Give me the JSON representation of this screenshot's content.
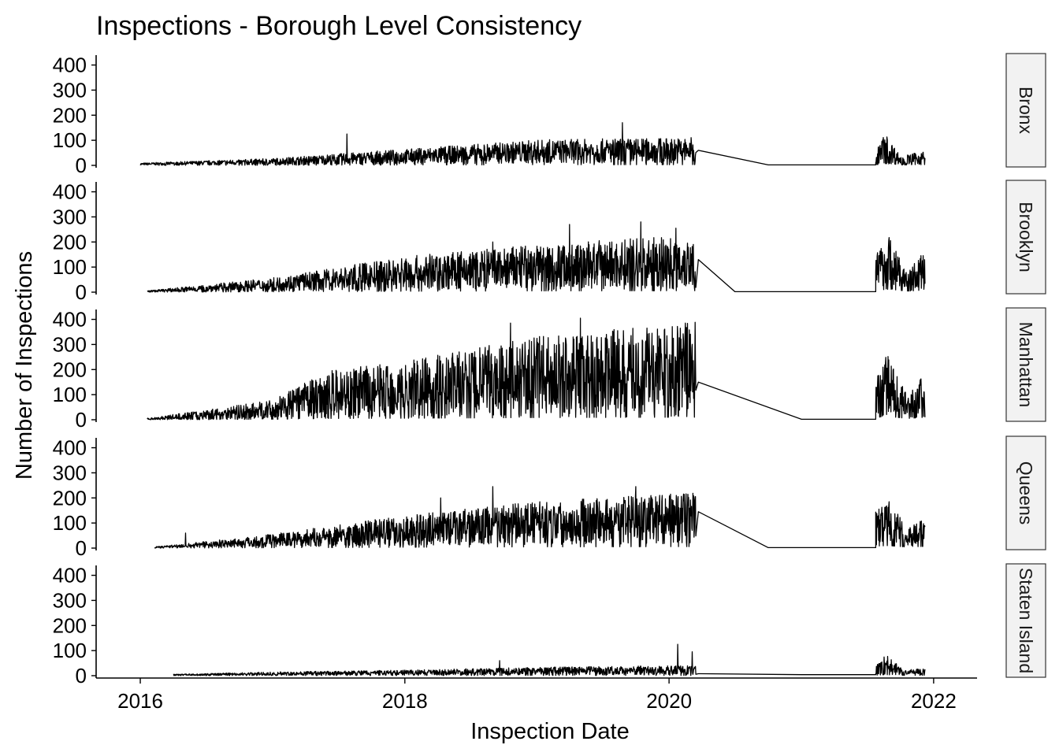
{
  "chart_data": {
    "type": "line",
    "title": "Inspections - Borough Level Consistency",
    "xlabel": "Inspection Date",
    "ylabel": "Number of Inspections",
    "x_ticks": [
      "2016",
      "2018",
      "2020",
      "2022"
    ],
    "y_ticks": [
      "0",
      "100",
      "200",
      "300",
      "400"
    ],
    "xlim": [
      "2015-09-01",
      "2022-05-01"
    ],
    "ylim": [
      0,
      430
    ],
    "grid": false,
    "legend": "none",
    "facet_layout": "rows",
    "colors": {
      "line": "#000000",
      "strip_fill": "#f2f2f2",
      "strip_border": "#333333"
    },
    "series": [
      {
        "name": "Bronx",
        "start": "2016-01-01",
        "end": "2020-03-15",
        "gap_low_date": "2020-10-01",
        "resume": "2021-07-25",
        "final": "2021-12-08",
        "before_peak": "2020-03-22",
        "before_peak_value": 60,
        "gap_low_value": 2,
        "waypoints": [
          [
            "2016-01-01",
            5
          ],
          [
            "2017-01-01",
            15
          ],
          [
            "2018-01-01",
            35
          ],
          [
            "2019-01-01",
            55
          ],
          [
            "2020-03-10",
            60
          ]
        ],
        "amplitude": 0.9,
        "spikes": [
          [
            "2017-07-25",
            125
          ],
          [
            "2019-08-25",
            170
          ],
          [
            "2018-10-10",
            80
          ]
        ],
        "post": [
          [
            "2021-07-25",
            30
          ],
          [
            "2021-08-20",
            70
          ],
          [
            "2021-10-01",
            20
          ],
          [
            "2021-12-08",
            30
          ]
        ]
      },
      {
        "name": "Brooklyn",
        "start": "2016-01-20",
        "end": "2020-03-15",
        "gap_low_date": "2020-07-01",
        "resume": "2021-07-25",
        "final": "2021-12-08",
        "before_peak": "2020-03-22",
        "before_peak_value": 130,
        "gap_low_value": 2,
        "waypoints": [
          [
            "2016-01-20",
            3
          ],
          [
            "2017-01-01",
            30
          ],
          [
            "2018-01-01",
            75
          ],
          [
            "2019-01-01",
            100
          ],
          [
            "2020-03-10",
            120
          ]
        ],
        "amplitude": 0.95,
        "spikes": [
          [
            "2019-10-15",
            280
          ],
          [
            "2019-04-01",
            270
          ],
          [
            "2020-01-20",
            255
          ],
          [
            "2018-09-01",
            200
          ]
        ],
        "post": [
          [
            "2021-07-25",
            80
          ],
          [
            "2021-09-01",
            120
          ],
          [
            "2021-10-20",
            40
          ],
          [
            "2021-12-08",
            90
          ]
        ]
      },
      {
        "name": "Manhattan",
        "start": "2016-01-20",
        "end": "2020-03-15",
        "gap_low_date": "2021-01-01",
        "resume": "2021-07-25",
        "final": "2021-12-08",
        "before_peak": "2020-03-22",
        "before_peak_value": 150,
        "gap_low_value": 2,
        "waypoints": [
          [
            "2016-01-20",
            3
          ],
          [
            "2017-01-01",
            40
          ],
          [
            "2017-06-01",
            100
          ],
          [
            "2018-01-01",
            120
          ],
          [
            "2019-01-01",
            170
          ],
          [
            "2020-03-10",
            200
          ]
        ],
        "amplitude": 1.0,
        "spikes": [
          [
            "2018-10-20",
            385
          ],
          [
            "2019-05-01",
            405
          ],
          [
            "2020-02-15",
            385
          ],
          [
            "2019-11-01",
            365
          ]
        ],
        "post": [
          [
            "2021-07-25",
            90
          ],
          [
            "2021-08-25",
            140
          ],
          [
            "2021-10-20",
            50
          ],
          [
            "2021-12-08",
            100
          ]
        ]
      },
      {
        "name": "Queens",
        "start": "2016-02-10",
        "end": "2020-03-15",
        "gap_low_date": "2020-10-01",
        "resume": "2021-07-25",
        "final": "2021-12-08",
        "before_peak": "2020-03-22",
        "before_peak_value": 145,
        "gap_low_value": 2,
        "waypoints": [
          [
            "2016-02-10",
            3
          ],
          [
            "2017-01-01",
            30
          ],
          [
            "2018-01-01",
            70
          ],
          [
            "2019-01-01",
            100
          ],
          [
            "2020-03-10",
            120
          ]
        ],
        "amplitude": 0.9,
        "spikes": [
          [
            "2016-05-05",
            60
          ],
          [
            "2018-09-01",
            245
          ],
          [
            "2019-10-01",
            245
          ],
          [
            "2018-04-10",
            200
          ]
        ],
        "post": [
          [
            "2021-07-25",
            80
          ],
          [
            "2021-09-01",
            100
          ],
          [
            "2021-10-20",
            40
          ],
          [
            "2021-12-08",
            70
          ]
        ]
      },
      {
        "name": "Staten Island",
        "start": "2016-04-01",
        "end": "2020-03-15",
        "gap_low_date": "2021-01-01",
        "resume": "2021-07-25",
        "final": "2021-12-08",
        "before_peak": "2020-03-22",
        "before_peak_value": 8,
        "gap_low_value": 4,
        "waypoints": [
          [
            "2016-04-01",
            3
          ],
          [
            "2017-01-01",
            8
          ],
          [
            "2018-01-01",
            12
          ],
          [
            "2019-01-01",
            18
          ],
          [
            "2020-03-10",
            22
          ]
        ],
        "amplitude": 0.9,
        "spikes": [
          [
            "2020-01-25",
            125
          ],
          [
            "2020-03-05",
            95
          ],
          [
            "2018-09-20",
            60
          ]
        ],
        "post": [
          [
            "2021-07-25",
            20
          ],
          [
            "2021-08-20",
            45
          ],
          [
            "2021-10-15",
            12
          ],
          [
            "2021-12-08",
            15
          ]
        ]
      }
    ]
  }
}
